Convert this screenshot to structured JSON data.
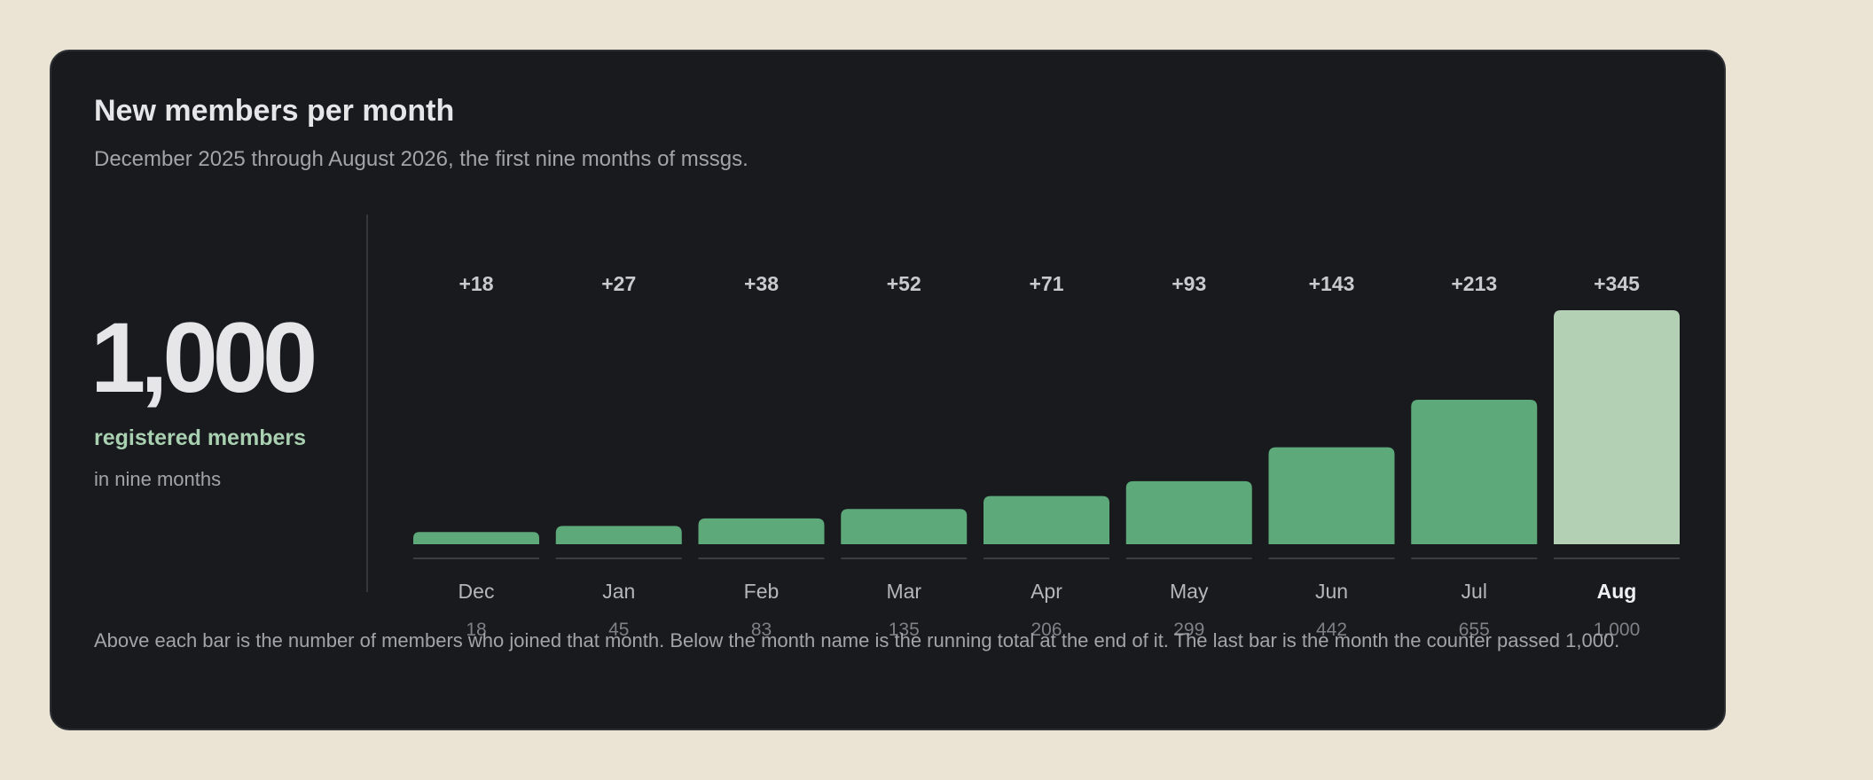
{
  "title": "New members per month",
  "subtitle": "December 2025 through August 2026, the first nine months of mssgs.",
  "summary": {
    "total": "1,000",
    "label": "registered members",
    "sublabel": "in nine months"
  },
  "footnote": "Above each bar is the number of members who joined that month. Below the month name is the running total at the end of it. The last bar is the month the counter passed 1,000.",
  "colors": {
    "bar": "#5da97a",
    "bar_highlight": "#b3d0b4",
    "month_label": "#b4b6bb",
    "month_label_highlight": "#f0f0f2",
    "total_label": "#7e8187",
    "delta_label": "#c8cacf",
    "baseline": "#3a3d42"
  },
  "chart_data": {
    "type": "bar",
    "categories": [
      "Dec",
      "Jan",
      "Feb",
      "Mar",
      "Apr",
      "May",
      "Jun",
      "Jul",
      "Aug"
    ],
    "values": [
      18,
      27,
      38,
      52,
      71,
      93,
      143,
      213,
      345
    ],
    "value_labels": [
      "+18",
      "+27",
      "+38",
      "+52",
      "+71",
      "+93",
      "+143",
      "+213",
      "+345"
    ],
    "running_totals": [
      "18",
      "45",
      "83",
      "135",
      "206",
      "299",
      "442",
      "655",
      "1,000"
    ],
    "highlight_index": 8,
    "ylim": [
      0,
      345
    ],
    "grid": false,
    "title": "New members per month",
    "xlabel": "",
    "ylabel": ""
  }
}
